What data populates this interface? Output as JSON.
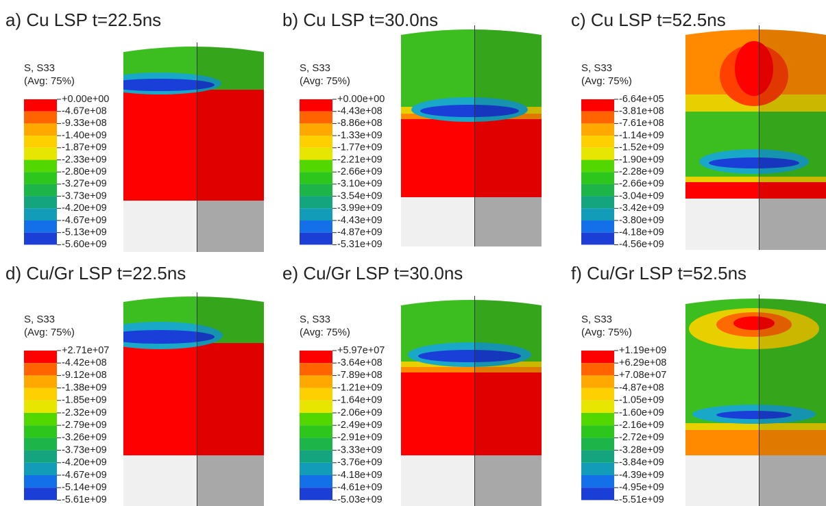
{
  "panels": [
    {
      "title": "a) Cu LSP t=22.5ns",
      "legend_title": "S, S33",
      "legend_subtitle": "(Avg: 75%)",
      "labels": [
        "+0.00e+00",
        "-4.67e+08",
        "-9.33e+08",
        "-1.40e+09",
        "-1.87e+09",
        "-2.33e+09",
        "-2.80e+09",
        "-3.27e+09",
        "-3.73e+09",
        "-4.20e+09",
        "-4.67e+09",
        "-5.13e+09",
        "-5.60e+09"
      ]
    },
    {
      "title": "b) Cu LSP t=30.0ns",
      "legend_title": "S, S33",
      "legend_subtitle": "(Avg: 75%)",
      "labels": [
        "+0.00e+00",
        "-4.43e+08",
        "-8.86e+08",
        "-1.33e+09",
        "-1.77e+09",
        "-2.21e+09",
        "-2.66e+09",
        "-3.10e+09",
        "-3.54e+09",
        "-3.99e+09",
        "-4.43e+09",
        "-4.87e+09",
        "-5.31e+09"
      ]
    },
    {
      "title": "c) Cu LSP t=52.5ns",
      "legend_title": "S, S33",
      "legend_subtitle": "(Avg: 75%)",
      "labels": [
        "-6.64e+05",
        "-3.81e+08",
        "-7.61e+08",
        "-1.14e+09",
        "-1.52e+09",
        "-1.90e+09",
        "-2.28e+09",
        "-2.66e+09",
        "-3.04e+09",
        "-3.42e+09",
        "-3.80e+09",
        "-4.18e+09",
        "-4.56e+09"
      ]
    },
    {
      "title": "d) Cu/Gr LSP t=22.5ns",
      "legend_title": "S, S33",
      "legend_subtitle": "(Avg: 75%)",
      "labels": [
        "+2.71e+07",
        "-4.42e+08",
        "-9.12e+08",
        "-1.38e+09",
        "-1.85e+09",
        "-2.32e+09",
        "-2.79e+09",
        "-3.26e+09",
        "-3.73e+09",
        "-4.20e+09",
        "-4.67e+09",
        "-5.14e+09",
        "-5.61e+09"
      ]
    },
    {
      "title": "e) Cu/Gr LSP t=30.0ns",
      "legend_title": "S, S33",
      "legend_subtitle": "(Avg: 75%)",
      "labels": [
        "+5.97e+07",
        "-3.64e+08",
        "-7.89e+08",
        "-1.21e+09",
        "-1.64e+09",
        "-2.06e+09",
        "-2.49e+09",
        "-2.91e+09",
        "-3.33e+09",
        "-3.76e+09",
        "-4.18e+09",
        "-4.61e+09",
        "-5.03e+09"
      ]
    },
    {
      "title": "f) Cu/Gr LSP t=52.5ns",
      "legend_title": "S, S33",
      "legend_subtitle": "(Avg: 75%)",
      "labels": [
        "+1.19e+09",
        "+6.29e+08",
        "+7.08e+07",
        "-4.87e+08",
        "-1.05e+09",
        "-1.60e+09",
        "-2.16e+09",
        "-2.72e+09",
        "-3.28e+09",
        "-3.84e+09",
        "-4.39e+09",
        "-4.95e+09",
        "-5.51e+09"
      ]
    }
  ]
}
